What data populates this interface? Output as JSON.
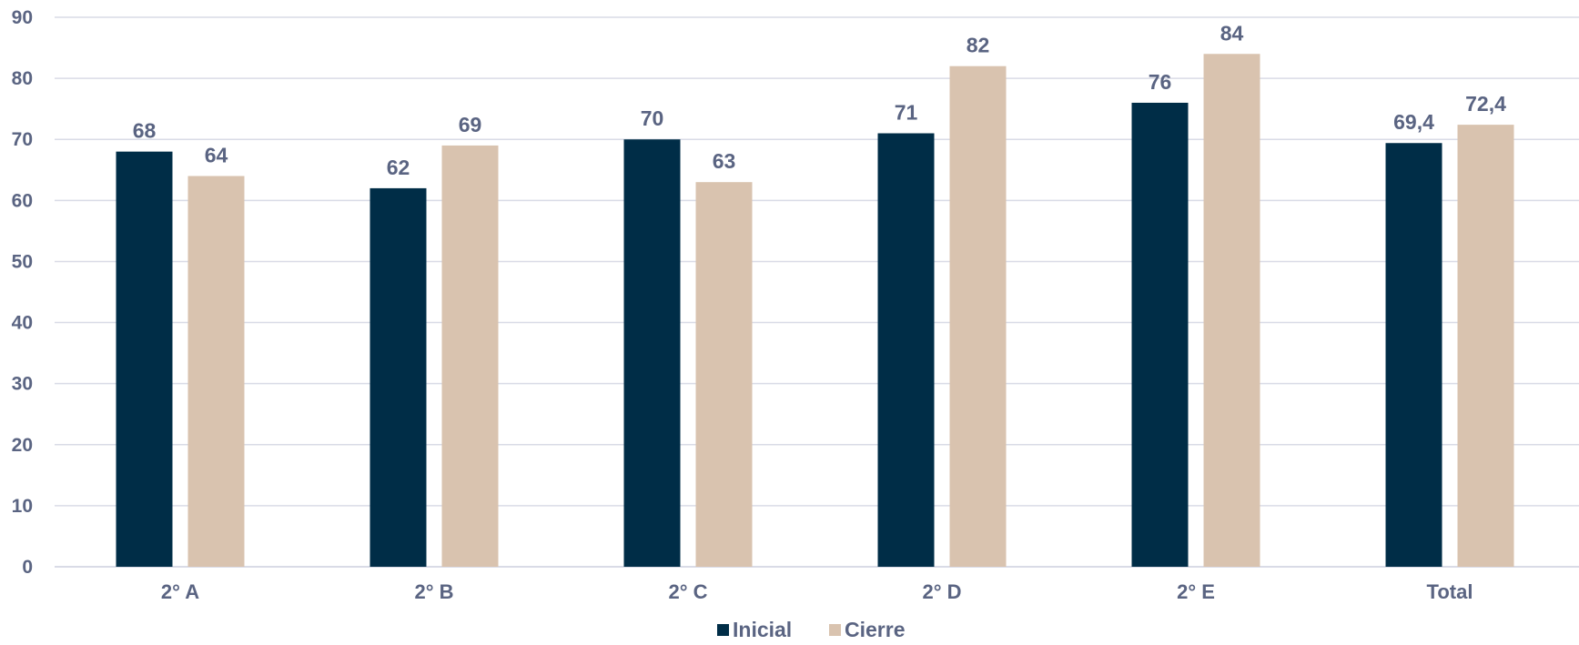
{
  "chart_data": {
    "type": "bar",
    "categories": [
      "2° A",
      "2° B",
      "2° C",
      "2° D",
      "2° E",
      "Total"
    ],
    "series": [
      {
        "name": "Inicial",
        "color": "#002d47",
        "values": [
          68,
          62,
          70,
          71,
          76,
          69.4
        ],
        "labels": [
          "68",
          "62",
          "70",
          "71",
          "76",
          "69,4"
        ]
      },
      {
        "name": "Cierre",
        "color": "#d9c3af",
        "values": [
          64,
          69,
          63,
          82,
          84,
          72.4
        ],
        "labels": [
          "64",
          "69",
          "63",
          "82",
          "84",
          "72,4"
        ]
      }
    ],
    "ylim": [
      0,
      90
    ],
    "yticks": [
      "0",
      "10",
      "20",
      "30",
      "40",
      "50",
      "60",
      "70",
      "80",
      "90"
    ],
    "grid": true,
    "legend_position": "bottom",
    "title": "",
    "xlabel": "",
    "ylabel": ""
  }
}
